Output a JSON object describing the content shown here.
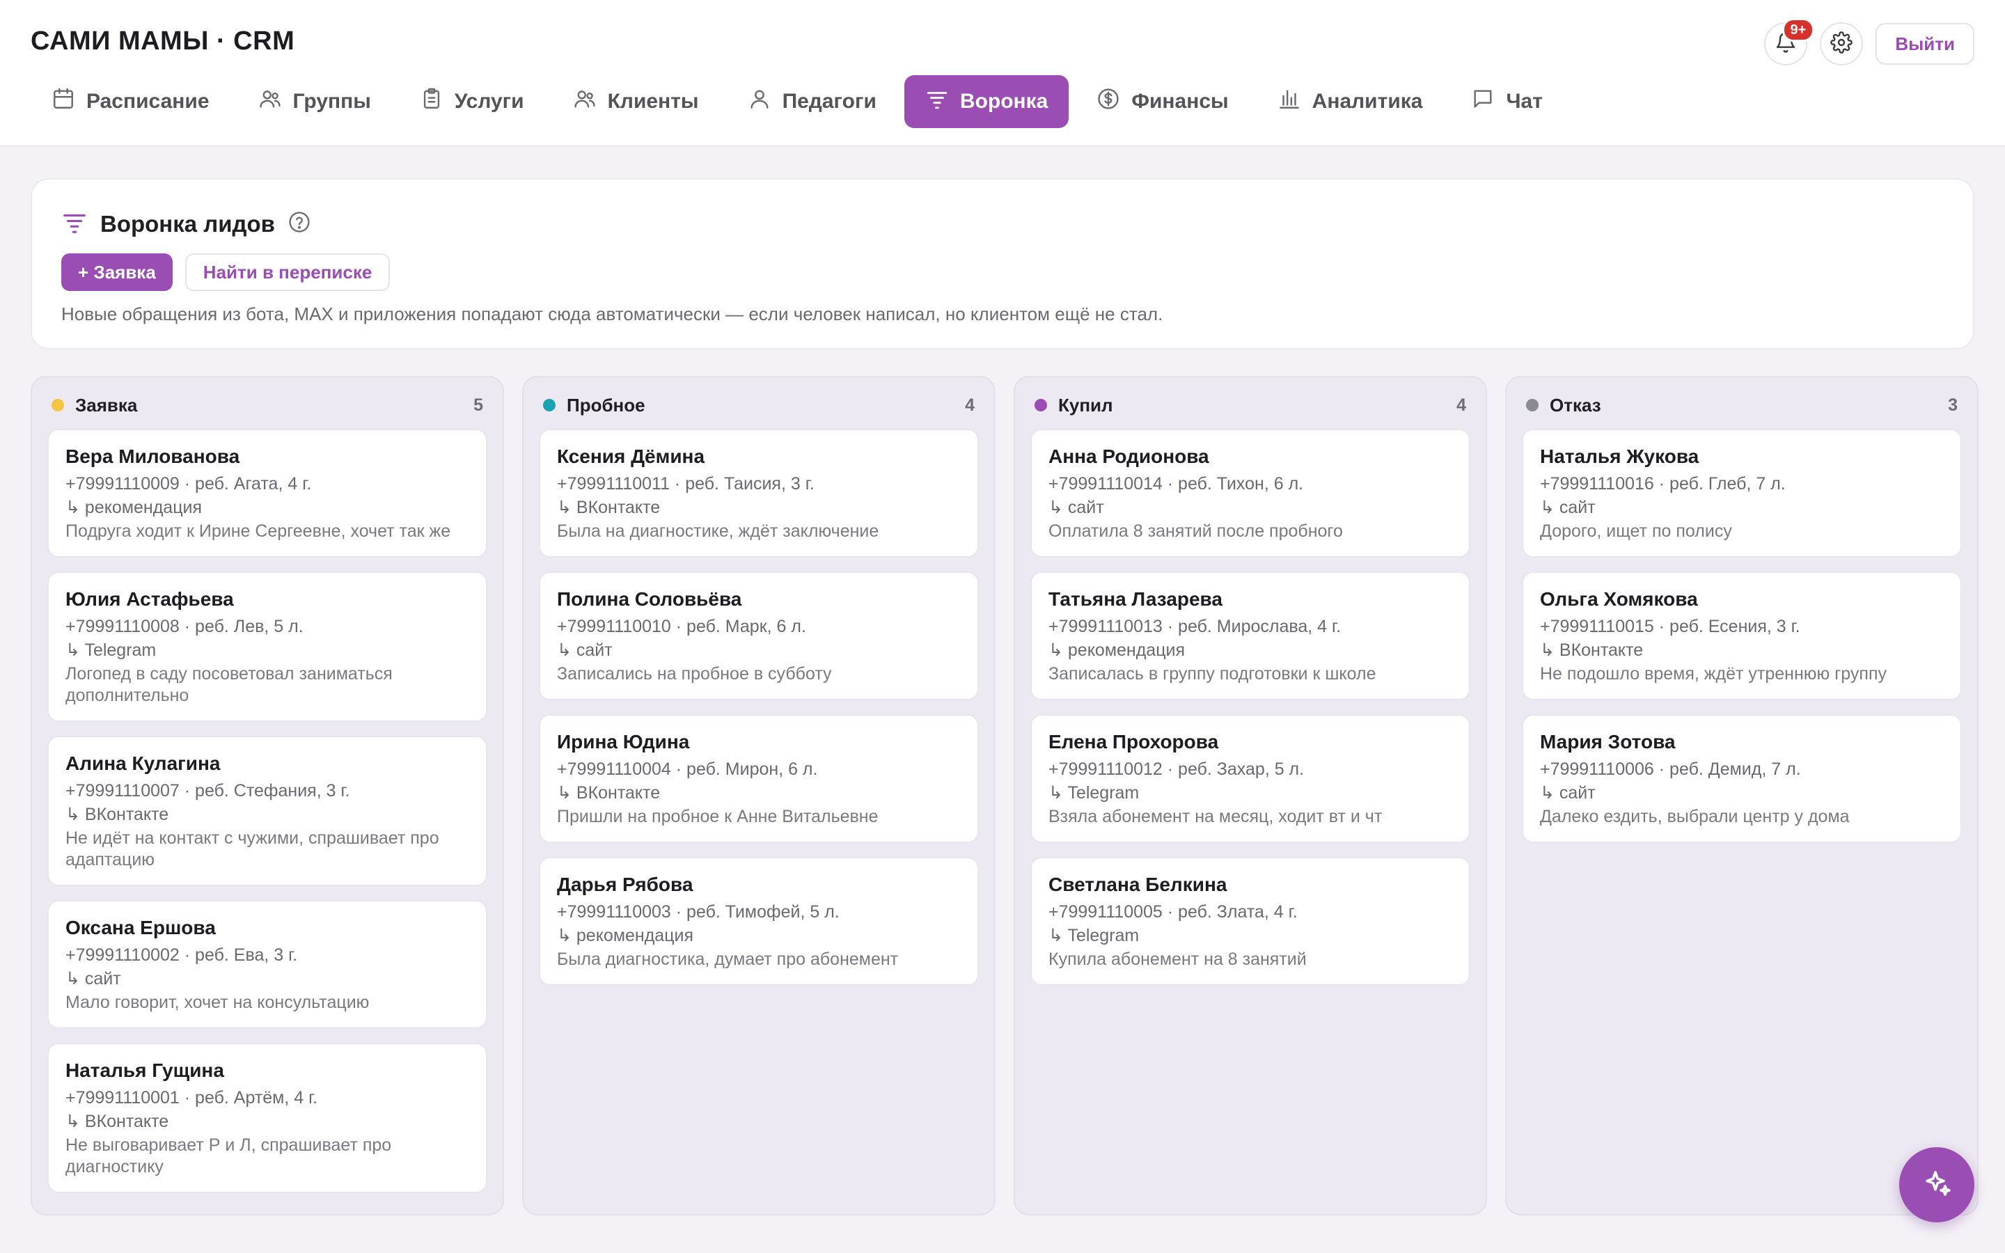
{
  "app": {
    "title": "САМИ МАМЫ · CRM"
  },
  "header": {
    "notification_count": "9+",
    "logout_label": "Выйти"
  },
  "nav": {
    "tabs": [
      {
        "label": "Расписание",
        "icon": "calendar-icon"
      },
      {
        "label": "Группы",
        "icon": "group-icon"
      },
      {
        "label": "Услуги",
        "icon": "clipboard-icon"
      },
      {
        "label": "Клиенты",
        "icon": "clients-icon"
      },
      {
        "label": "Педагоги",
        "icon": "teacher-icon"
      },
      {
        "label": "Воронка",
        "icon": "funnel-icon",
        "active": true
      },
      {
        "label": "Финансы",
        "icon": "dollar-circle-icon"
      },
      {
        "label": "Аналитика",
        "icon": "bar-chart-icon"
      },
      {
        "label": "Чат",
        "icon": "chat-icon"
      }
    ]
  },
  "panel": {
    "title": "Воронка лидов",
    "add_button": "+ Заявка",
    "search_button": "Найти в переписке",
    "hint": "Новые обращения из бота, MAX и приложения попадают сюда автоматически — если человек написал, но клиентом ещё не стал."
  },
  "colors": {
    "accent": "#9a4db3",
    "zayavka": "#f5c542",
    "probnoe": "#1aa3b3",
    "kupil": "#9a4db3",
    "otkaz": "#8a8890"
  },
  "board": {
    "columns": [
      {
        "title": "Заявка",
        "count": "5",
        "color": "#f5c542",
        "cards": [
          {
            "name": "Вера Милованова",
            "info": "+79991110009 · реб. Агата, 4 г.",
            "source": "↳ рекомендация",
            "note": "Подруга ходит к Ирине Сергеевне, хочет так же"
          },
          {
            "name": "Юлия Астафьева",
            "info": "+79991110008 · реб. Лев, 5 л.",
            "source": "↳ Telegram",
            "note": "Логопед в саду посоветовал заниматься дополнительно"
          },
          {
            "name": "Алина Кулагина",
            "info": "+79991110007 · реб. Стефания, 3 г.",
            "source": "↳ ВКонтакте",
            "note": "Не идёт на контакт с чужими, спрашивает про адаптацию"
          },
          {
            "name": "Оксана Ершова",
            "info": "+79991110002 · реб. Ева, 3 г.",
            "source": "↳ сайт",
            "note": "Мало говорит, хочет на консультацию"
          },
          {
            "name": "Наталья Гущина",
            "info": "+79991110001 · реб. Артём, 4 г.",
            "source": "↳ ВКонтакте",
            "note": "Не выговаривает Р и Л, спрашивает про диагностику"
          }
        ]
      },
      {
        "title": "Пробное",
        "count": "4",
        "color": "#1aa3b3",
        "cards": [
          {
            "name": "Ксения Дёмина",
            "info": "+79991110011 · реб. Таисия, 3 г.",
            "source": "↳ ВКонтакте",
            "note": "Была на диагностике, ждёт заключение"
          },
          {
            "name": "Полина Соловьёва",
            "info": "+79991110010 · реб. Марк, 6 л.",
            "source": "↳ сайт",
            "note": "Записались на пробное в субботу"
          },
          {
            "name": "Ирина Юдина",
            "info": "+79991110004 · реб. Мирон, 6 л.",
            "source": "↳ ВКонтакте",
            "note": "Пришли на пробное к Анне Витальевне"
          },
          {
            "name": "Дарья Рябова",
            "info": "+79991110003 · реб. Тимофей, 5 л.",
            "source": "↳ рекомендация",
            "note": "Была диагностика, думает про абонемент"
          }
        ]
      },
      {
        "title": "Купил",
        "count": "4",
        "color": "#9a4db3",
        "cards": [
          {
            "name": "Анна Родионова",
            "info": "+79991110014 · реб. Тихон, 6 л.",
            "source": "↳ сайт",
            "note": "Оплатила 8 занятий после пробного"
          },
          {
            "name": "Татьяна Лазарева",
            "info": "+79991110013 · реб. Мирослава, 4 г.",
            "source": "↳ рекомендация",
            "note": "Записалась в группу подготовки к школе"
          },
          {
            "name": "Елена Прохорова",
            "info": "+79991110012 · реб. Захар, 5 л.",
            "source": "↳ Telegram",
            "note": "Взяла абонемент на месяц, ходит вт и чт"
          },
          {
            "name": "Светлана Белкина",
            "info": "+79991110005 · реб. Злата, 4 г.",
            "source": "↳ Telegram",
            "note": "Купила абонемент на 8 занятий"
          }
        ]
      },
      {
        "title": "Отказ",
        "count": "3",
        "color": "#8a8890",
        "cards": [
          {
            "name": "Наталья Жукова",
            "info": "+79991110016 · реб. Глеб, 7 л.",
            "source": "↳ сайт",
            "note": "Дорого, ищет по полису"
          },
          {
            "name": "Ольга Хомякова",
            "info": "+79991110015 · реб. Есения, 3 г.",
            "source": "↳ ВКонтакте",
            "note": "Не подошло время, ждёт утреннюю группу"
          },
          {
            "name": "Мария Зотова",
            "info": "+79991110006 · реб. Демид, 7 л.",
            "source": "↳ сайт",
            "note": "Далеко ездить, выбрали центр у дома"
          }
        ]
      }
    ]
  },
  "fab": {
    "icon": "sparkle-icon"
  }
}
